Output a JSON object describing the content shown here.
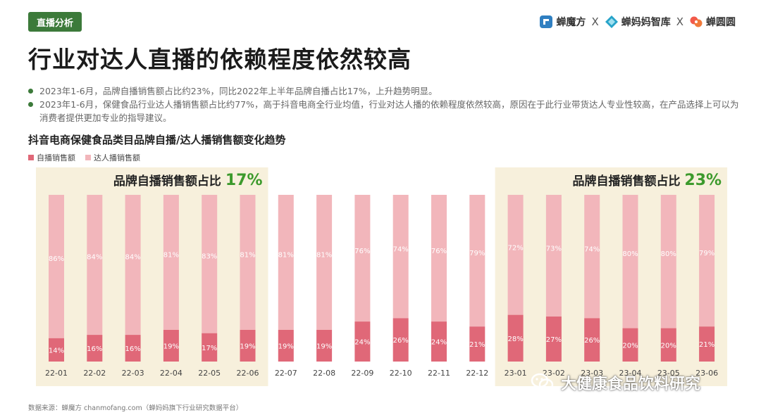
{
  "header": {
    "tag": "直播分析",
    "brands": [
      "蝉魔方",
      "蝉妈妈智库",
      "蝉圆圆"
    ],
    "separator": "X"
  },
  "title": "行业对达人直播的依赖程度依然较高",
  "bullets": [
    "2023年1-6月，品牌自播销售额占比约23%，同比2022年上半年品牌自播占比17%，上升趋势明显。",
    "2023年1-6月，保健食品行业达人播销售额占比约77%，高于抖音电商全行业均值，行业对达人播的依赖程度依然较高，原因在于此行业带货达人专业性较高，在产品选择上可以为消费者提供更加专业的指导建议。"
  ],
  "source": "数据来源：蝉魔方 chanmofang.com（蝉妈妈旗下行业研究数据平台）",
  "watermark": "大健康食品饮料研究",
  "chart_data": {
    "type": "bar",
    "stacked": true,
    "percent": true,
    "title": "抖音电商保健食品类目品牌自播/达人播销售额变化趋势",
    "categories": [
      "22-01",
      "22-02",
      "22-03",
      "22-04",
      "22-05",
      "22-06",
      "22-07",
      "22-08",
      "22-09",
      "22-10",
      "22-11",
      "22-12",
      "23-01",
      "23-02",
      "23-03",
      "23-04",
      "23-05",
      "23-06"
    ],
    "series": [
      {
        "name": "自播销售额",
        "color": "#e06878",
        "values": [
          14,
          16,
          16,
          19,
          17,
          19,
          19,
          19,
          24,
          26,
          24,
          21,
          28,
          27,
          26,
          20,
          20,
          21
        ]
      },
      {
        "name": "达人播销售额",
        "color": "#f2b6bb",
        "values": [
          86,
          84,
          84,
          81,
          83,
          81,
          81,
          81,
          76,
          74,
          76,
          79,
          72,
          73,
          74,
          80,
          80,
          79
        ]
      }
    ],
    "ylim": [
      0,
      100
    ],
    "highlights": [
      {
        "label": "品牌自播销售额占比",
        "value": "17%",
        "from": "22-01",
        "to": "22-06"
      },
      {
        "label": "品牌自播销售额占比",
        "value": "23%",
        "from": "23-01",
        "to": "23-06"
      }
    ],
    "colors": {
      "highlight_bg": "#f7f0dc",
      "accent_green": "#3c9a2c",
      "value_label": "#ffffff"
    }
  }
}
